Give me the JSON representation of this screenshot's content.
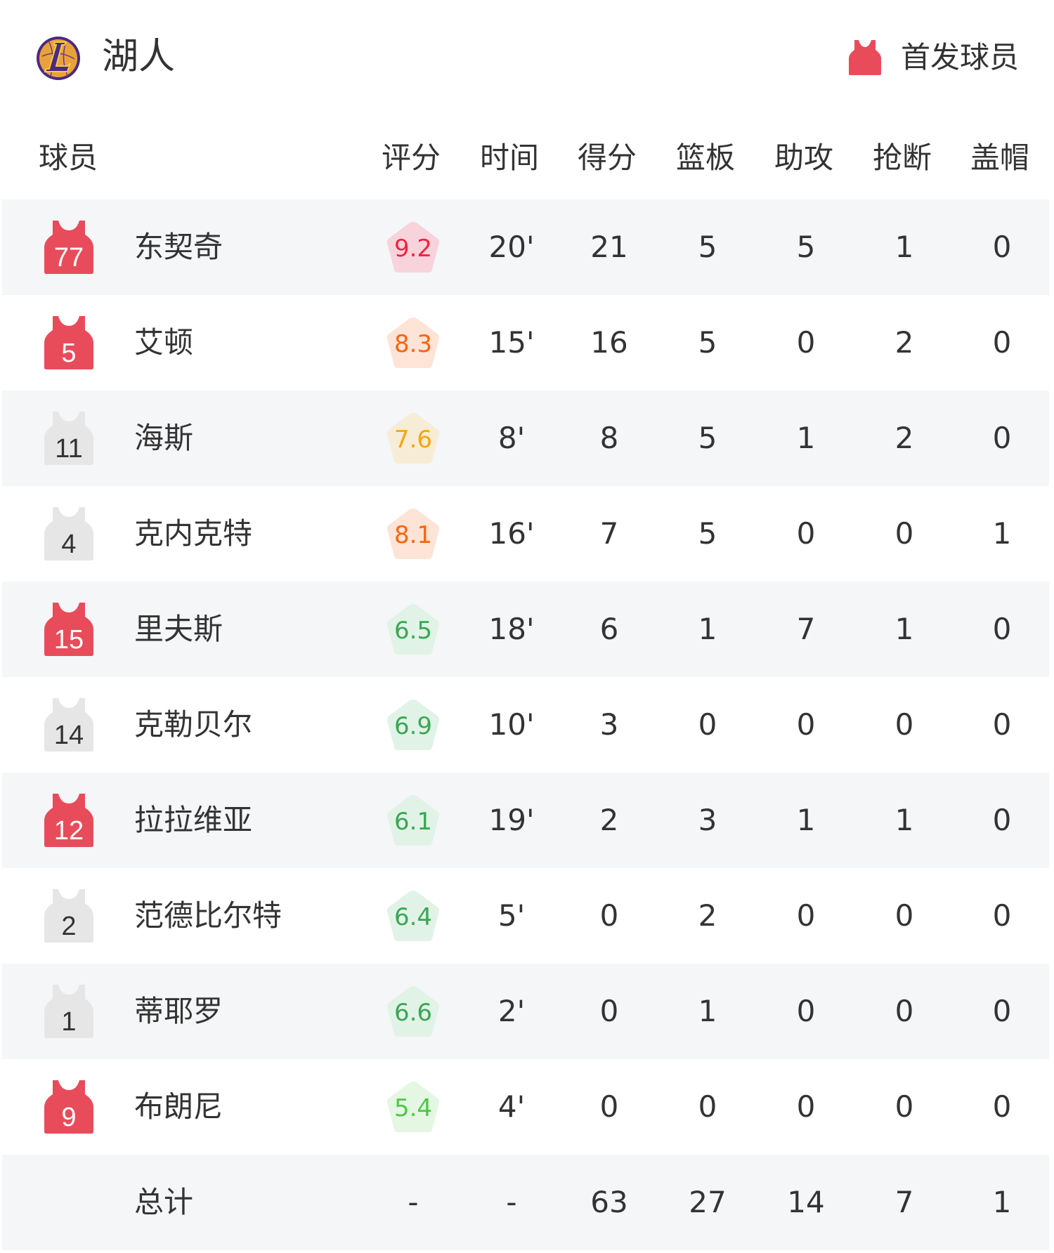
{
  "header": {
    "team_name": "湖人",
    "team_logo": "lakers-logo",
    "legend_label": "首发球员",
    "legend_icon": "jersey-icon"
  },
  "colors": {
    "starter_jersey": "#e84c5a",
    "bench_jersey": "#e6e6e6",
    "row_alt_bg": "#f5f6f8"
  },
  "columns": [
    "球员",
    "评分",
    "时间",
    "得分",
    "篮板",
    "助攻",
    "抢断",
    "盖帽"
  ],
  "players": [
    {
      "number": "77",
      "name": "东契奇",
      "starter": true,
      "rating": "9.2",
      "tier": "red",
      "time": "20'",
      "pts": "21",
      "reb": "5",
      "ast": "5",
      "stl": "1",
      "blk": "0"
    },
    {
      "number": "5",
      "name": "艾顿",
      "starter": true,
      "rating": "8.3",
      "tier": "orange",
      "time": "15'",
      "pts": "16",
      "reb": "5",
      "ast": "0",
      "stl": "2",
      "blk": "0"
    },
    {
      "number": "11",
      "name": "海斯",
      "starter": false,
      "rating": "7.6",
      "tier": "yellow",
      "time": "8'",
      "pts": "8",
      "reb": "5",
      "ast": "1",
      "stl": "2",
      "blk": "0"
    },
    {
      "number": "4",
      "name": "克内克特",
      "starter": false,
      "rating": "8.1",
      "tier": "orange",
      "time": "16'",
      "pts": "7",
      "reb": "5",
      "ast": "0",
      "stl": "0",
      "blk": "1"
    },
    {
      "number": "15",
      "name": "里夫斯",
      "starter": true,
      "rating": "6.5",
      "tier": "green",
      "time": "18'",
      "pts": "6",
      "reb": "1",
      "ast": "7",
      "stl": "1",
      "blk": "0"
    },
    {
      "number": "14",
      "name": "克勒贝尔",
      "starter": false,
      "rating": "6.9",
      "tier": "green",
      "time": "10'",
      "pts": "3",
      "reb": "0",
      "ast": "0",
      "stl": "0",
      "blk": "0"
    },
    {
      "number": "12",
      "name": "拉拉维亚",
      "starter": true,
      "rating": "6.1",
      "tier": "green",
      "time": "19'",
      "pts": "2",
      "reb": "3",
      "ast": "1",
      "stl": "1",
      "blk": "0"
    },
    {
      "number": "2",
      "name": "范德比尔特",
      "starter": false,
      "rating": "6.4",
      "tier": "green",
      "time": "5'",
      "pts": "0",
      "reb": "2",
      "ast": "0",
      "stl": "0",
      "blk": "0"
    },
    {
      "number": "1",
      "name": "蒂耶罗",
      "starter": false,
      "rating": "6.6",
      "tier": "green",
      "time": "2'",
      "pts": "0",
      "reb": "1",
      "ast": "0",
      "stl": "0",
      "blk": "0"
    },
    {
      "number": "9",
      "name": "布朗尼",
      "starter": true,
      "rating": "5.4",
      "tier": "lightgreen",
      "time": "4'",
      "pts": "0",
      "reb": "0",
      "ast": "0",
      "stl": "0",
      "blk": "0"
    }
  ],
  "totals": {
    "label": "总计",
    "rating": "-",
    "time": "-",
    "pts": "63",
    "reb": "27",
    "ast": "14",
    "stl": "7",
    "blk": "1"
  },
  "rating_tiers": {
    "red": {
      "bg": "#f8d3db",
      "fg": "#f0233f"
    },
    "orange": {
      "bg": "#fde4d7",
      "fg": "#fa6410"
    },
    "yellow": {
      "bg": "#f7ecd6",
      "fg": "#f6a510"
    },
    "green": {
      "bg": "#e1f3e6",
      "fg": "#3ba654"
    },
    "lightgreen": {
      "bg": "#e4f7e2",
      "fg": "#4fc744"
    }
  }
}
